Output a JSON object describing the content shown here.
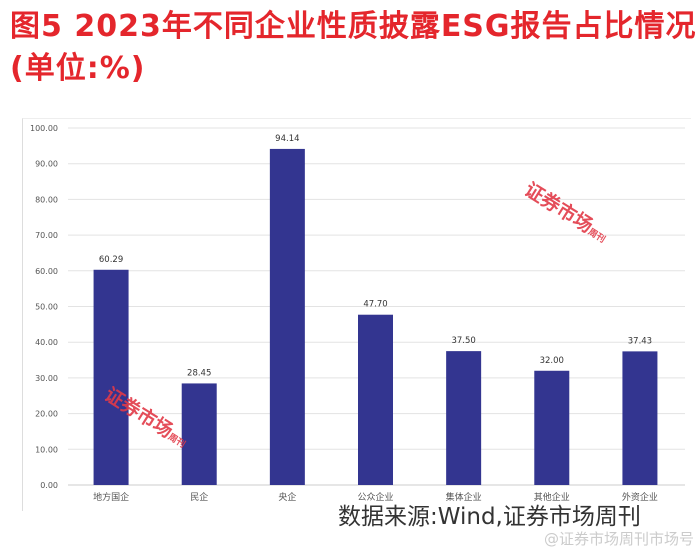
{
  "title": "图5  2023年不同企业性质披露ESG报告占比情况(单位:%)",
  "source": "数据来源:Wind,证券市场周刊",
  "watermark": {
    "stamp": "证券市场",
    "stamp_small": "周刊",
    "weibo": "@证券市场周刊市场号"
  },
  "colors": {
    "bar": "#333590",
    "title": "#e4262c",
    "grid": "#e3e3e3"
  },
  "chart_data": {
    "type": "bar",
    "title": "",
    "xlabel": "",
    "ylabel": "",
    "categories": [
      "地方国企",
      "民企",
      "央企",
      "公众企业",
      "集体企业",
      "其他企业",
      "外资企业"
    ],
    "values": [
      60.29,
      28.45,
      94.14,
      47.7,
      37.5,
      32.0,
      37.43
    ],
    "data_labels": [
      "60.29",
      "28.45",
      "94.14",
      "47.70",
      "37.50",
      "32.00",
      "37.43"
    ],
    "ylim": [
      0,
      100
    ],
    "yticks": [
      "0.00",
      "10.00",
      "20.00",
      "30.00",
      "40.00",
      "50.00",
      "60.00",
      "70.00",
      "80.00",
      "90.00",
      "100.00"
    ],
    "grid": true,
    "legend": "none"
  }
}
